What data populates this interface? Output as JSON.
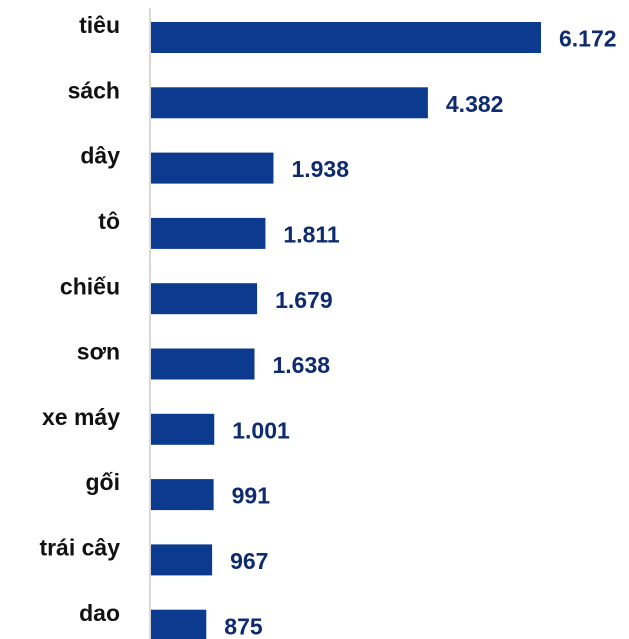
{
  "chart_data": {
    "type": "bar",
    "orientation": "horizontal",
    "categories": [
      "tiêu",
      "sách",
      "dây",
      "tô",
      "chiếu",
      "sơn",
      "xe máy",
      "gối",
      "trái cây",
      "dao"
    ],
    "values": [
      6172,
      4382,
      1938,
      1811,
      1679,
      1638,
      1001,
      991,
      967,
      875
    ],
    "value_labels": [
      "6.172",
      "4.382",
      "1.938",
      "1.811",
      "1.679",
      "1.638",
      "1.001",
      "991",
      "967",
      "875"
    ],
    "color": "#0b3a8e"
  }
}
